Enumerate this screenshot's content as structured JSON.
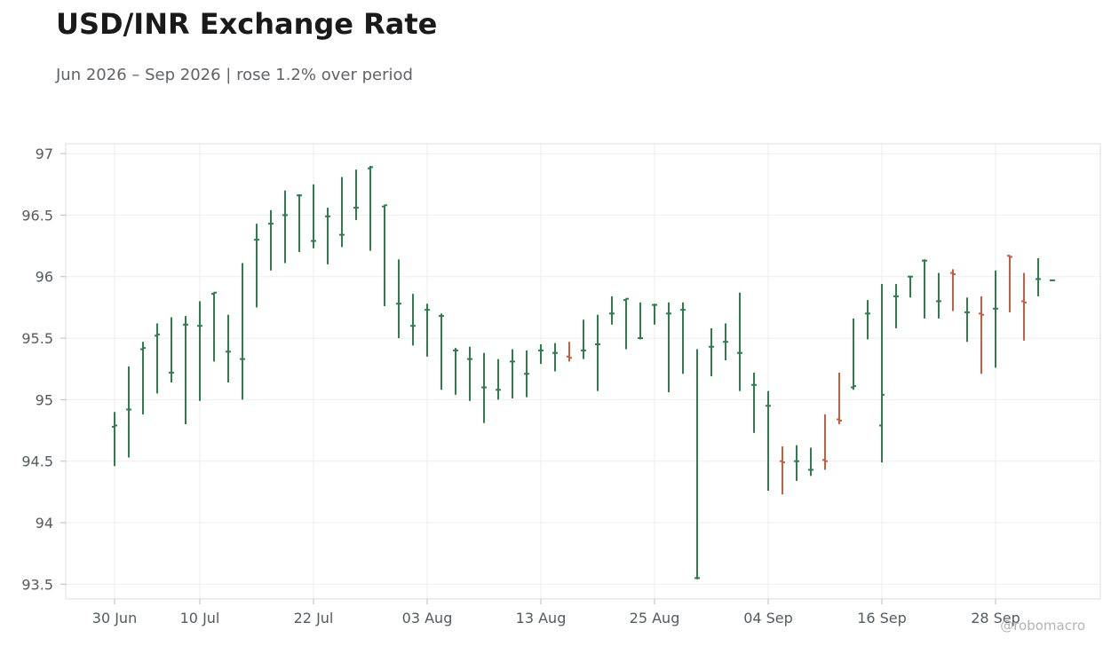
{
  "chart_data": {
    "type": "ohlc",
    "title": "USD/INR Exchange Rate",
    "subtitle": "Jun 2026 – Sep 2026 | rose 1.2% over period",
    "xlabel": "",
    "ylabel": "",
    "ylim": [
      93.38,
      97.08
    ],
    "yticks": [
      93.5,
      94,
      94.5,
      95,
      95.5,
      96,
      96.5,
      97
    ],
    "xticks": [
      "30 Jun",
      "10 Jul",
      "22 Jul",
      "03 Aug",
      "13 Aug",
      "25 Aug",
      "04 Sep",
      "16 Sep",
      "28 Sep"
    ],
    "grid": true,
    "watermark": "@robomacro",
    "colors": {
      "up": "#2e7d4f",
      "down": "#c0603f"
    },
    "candles": [
      {
        "date": "30 Jun",
        "open": 94.78,
        "high": 94.9,
        "low": 94.46,
        "close": 94.79
      },
      {
        "date": "02 Jul",
        "open": 94.92,
        "high": 95.27,
        "low": 94.53,
        "close": 94.92
      },
      {
        "date": "06 Jul",
        "open": 95.41,
        "high": 95.47,
        "low": 94.88,
        "close": 95.42
      },
      {
        "date": "07 Jul",
        "open": 95.52,
        "high": 95.62,
        "low": 95.05,
        "close": 95.53
      },
      {
        "date": "08 Jul",
        "open": 95.22,
        "high": 95.67,
        "low": 95.14,
        "close": 95.22
      },
      {
        "date": "09 Jul",
        "open": 95.61,
        "high": 95.68,
        "low": 94.8,
        "close": 95.61
      },
      {
        "date": "10 Jul",
        "open": 95.6,
        "high": 95.8,
        "low": 94.99,
        "close": 95.6
      },
      {
        "date": "13 Jul",
        "open": 95.86,
        "high": 95.87,
        "low": 95.31,
        "close": 95.87
      },
      {
        "date": "14 Jul",
        "open": 95.39,
        "high": 95.69,
        "low": 95.14,
        "close": 95.39
      },
      {
        "date": "15 Jul",
        "open": 95.33,
        "high": 96.11,
        "low": 95.0,
        "close": 95.33
      },
      {
        "date": "16 Jul",
        "open": 96.3,
        "high": 96.43,
        "low": 95.75,
        "close": 96.3
      },
      {
        "date": "17 Jul",
        "open": 96.43,
        "high": 96.54,
        "low": 96.05,
        "close": 96.43
      },
      {
        "date": "20 Jul",
        "open": 96.5,
        "high": 96.7,
        "low": 96.11,
        "close": 96.5
      },
      {
        "date": "21 Jul",
        "open": 96.66,
        "high": 96.67,
        "low": 96.2,
        "close": 96.66
      },
      {
        "date": "22 Jul",
        "open": 96.29,
        "high": 96.75,
        "low": 96.23,
        "close": 96.29
      },
      {
        "date": "23 Jul",
        "open": 96.49,
        "high": 96.56,
        "low": 96.1,
        "close": 96.49
      },
      {
        "date": "24 Jul",
        "open": 96.34,
        "high": 96.81,
        "low": 96.24,
        "close": 96.34
      },
      {
        "date": "27 Jul",
        "open": 96.56,
        "high": 96.87,
        "low": 96.46,
        "close": 96.56
      },
      {
        "date": "28 Jul",
        "open": 96.88,
        "high": 96.9,
        "low": 96.21,
        "close": 96.89
      },
      {
        "date": "29 Jul",
        "open": 96.57,
        "high": 96.58,
        "low": 95.76,
        "close": 96.58
      },
      {
        "date": "30 Jul",
        "open": 95.78,
        "high": 96.14,
        "low": 95.5,
        "close": 95.78
      },
      {
        "date": "31 Jul",
        "open": 95.6,
        "high": 95.86,
        "low": 95.44,
        "close": 95.6
      },
      {
        "date": "03 Aug",
        "open": 95.73,
        "high": 95.78,
        "low": 95.35,
        "close": 95.73
      },
      {
        "date": "04 Aug",
        "open": 95.68,
        "high": 95.7,
        "low": 95.08,
        "close": 95.68
      },
      {
        "date": "05 Aug",
        "open": 95.4,
        "high": 95.42,
        "low": 95.04,
        "close": 95.4
      },
      {
        "date": "06 Aug",
        "open": 95.33,
        "high": 95.43,
        "low": 94.99,
        "close": 95.33
      },
      {
        "date": "07 Aug",
        "open": 95.1,
        "high": 95.38,
        "low": 94.81,
        "close": 95.1
      },
      {
        "date": "10 Aug",
        "open": 95.08,
        "high": 95.33,
        "low": 95.0,
        "close": 95.08
      },
      {
        "date": "11 Aug",
        "open": 95.31,
        "high": 95.41,
        "low": 95.01,
        "close": 95.31
      },
      {
        "date": "12 Aug",
        "open": 95.21,
        "high": 95.4,
        "low": 95.02,
        "close": 95.21
      },
      {
        "date": "13 Aug",
        "open": 95.4,
        "high": 95.45,
        "low": 95.29,
        "close": 95.4
      },
      {
        "date": "14 Aug",
        "open": 95.38,
        "high": 95.46,
        "low": 95.23,
        "close": 95.38
      },
      {
        "date": "17 Aug",
        "open": 95.35,
        "high": 95.47,
        "low": 95.31,
        "close": 95.34
      },
      {
        "date": "18 Aug",
        "open": 95.4,
        "high": 95.65,
        "low": 95.33,
        "close": 95.4
      },
      {
        "date": "19 Aug",
        "open": 95.45,
        "high": 95.69,
        "low": 95.07,
        "close": 95.45
      },
      {
        "date": "20 Aug",
        "open": 95.7,
        "high": 95.84,
        "low": 95.61,
        "close": 95.7
      },
      {
        "date": "21 Aug",
        "open": 95.81,
        "high": 95.82,
        "low": 95.41,
        "close": 95.82
      },
      {
        "date": "24 Aug",
        "open": 95.5,
        "high": 95.79,
        "low": 95.49,
        "close": 95.5
      },
      {
        "date": "25 Aug",
        "open": 95.77,
        "high": 95.78,
        "low": 95.61,
        "close": 95.77
      },
      {
        "date": "26 Aug",
        "open": 95.7,
        "high": 95.79,
        "low": 95.06,
        "close": 95.7
      },
      {
        "date": "27 Aug",
        "open": 95.73,
        "high": 95.79,
        "low": 95.21,
        "close": 95.73
      },
      {
        "date": "28 Aug",
        "open": 93.55,
        "high": 95.41,
        "low": 93.54,
        "close": 93.55
      },
      {
        "date": "31 Aug",
        "open": 95.43,
        "high": 95.58,
        "low": 95.19,
        "close": 95.43
      },
      {
        "date": "01 Sep",
        "open": 95.47,
        "high": 95.62,
        "low": 95.32,
        "close": 95.47
      },
      {
        "date": "02 Sep",
        "open": 95.38,
        "high": 95.87,
        "low": 95.07,
        "close": 95.38
      },
      {
        "date": "03 Sep",
        "open": 95.12,
        "high": 95.22,
        "low": 94.73,
        "close": 95.12
      },
      {
        "date": "04 Sep",
        "open": 94.95,
        "high": 95.07,
        "low": 94.26,
        "close": 94.95
      },
      {
        "date": "07 Sep",
        "open": 94.5,
        "high": 94.62,
        "low": 94.23,
        "close": 94.49
      },
      {
        "date": "08 Sep",
        "open": 94.5,
        "high": 94.63,
        "low": 94.34,
        "close": 94.5
      },
      {
        "date": "09 Sep",
        "open": 94.43,
        "high": 94.61,
        "low": 94.38,
        "close": 94.43
      },
      {
        "date": "10 Sep",
        "open": 94.51,
        "high": 94.88,
        "low": 94.43,
        "close": 94.5
      },
      {
        "date": "11 Sep",
        "open": 94.84,
        "high": 95.22,
        "low": 94.8,
        "close": 94.83
      },
      {
        "date": "14 Sep",
        "open": 95.1,
        "high": 95.66,
        "low": 95.08,
        "close": 95.11
      },
      {
        "date": "15 Sep",
        "open": 95.7,
        "high": 95.81,
        "low": 95.49,
        "close": 95.7
      },
      {
        "date": "16 Sep",
        "open": 94.79,
        "high": 95.94,
        "low": 94.49,
        "close": 95.04
      },
      {
        "date": "17 Sep",
        "open": 95.84,
        "high": 95.94,
        "low": 95.58,
        "close": 95.84
      },
      {
        "date": "18 Sep",
        "open": 96.0,
        "high": 96.0,
        "low": 95.83,
        "close": 96.0
      },
      {
        "date": "21 Sep",
        "open": 96.13,
        "high": 96.14,
        "low": 95.66,
        "close": 96.13
      },
      {
        "date": "22 Sep",
        "open": 95.8,
        "high": 96.03,
        "low": 95.66,
        "close": 95.8
      },
      {
        "date": "23 Sep",
        "open": 96.03,
        "high": 96.06,
        "low": 95.72,
        "close": 96.02
      },
      {
        "date": "24 Sep",
        "open": 95.71,
        "high": 95.83,
        "low": 95.47,
        "close": 95.71
      },
      {
        "date": "25 Sep",
        "open": 95.7,
        "high": 95.84,
        "low": 95.21,
        "close": 95.69
      },
      {
        "date": "28 Sep",
        "open": 95.74,
        "high": 96.05,
        "low": 95.26,
        "close": 95.74
      },
      {
        "date": "29 Sep",
        "open": 96.17,
        "high": 96.17,
        "low": 95.71,
        "close": 96.16
      },
      {
        "date": "30 Sep",
        "open": 95.8,
        "high": 96.03,
        "low": 95.48,
        "close": 95.79
      },
      {
        "date": "01 Oct",
        "open": 95.98,
        "high": 96.15,
        "low": 95.84,
        "close": 95.98
      },
      {
        "date": "02 Oct",
        "open": 95.97,
        "high": 95.97,
        "low": 95.97,
        "close": 95.97
      }
    ]
  }
}
